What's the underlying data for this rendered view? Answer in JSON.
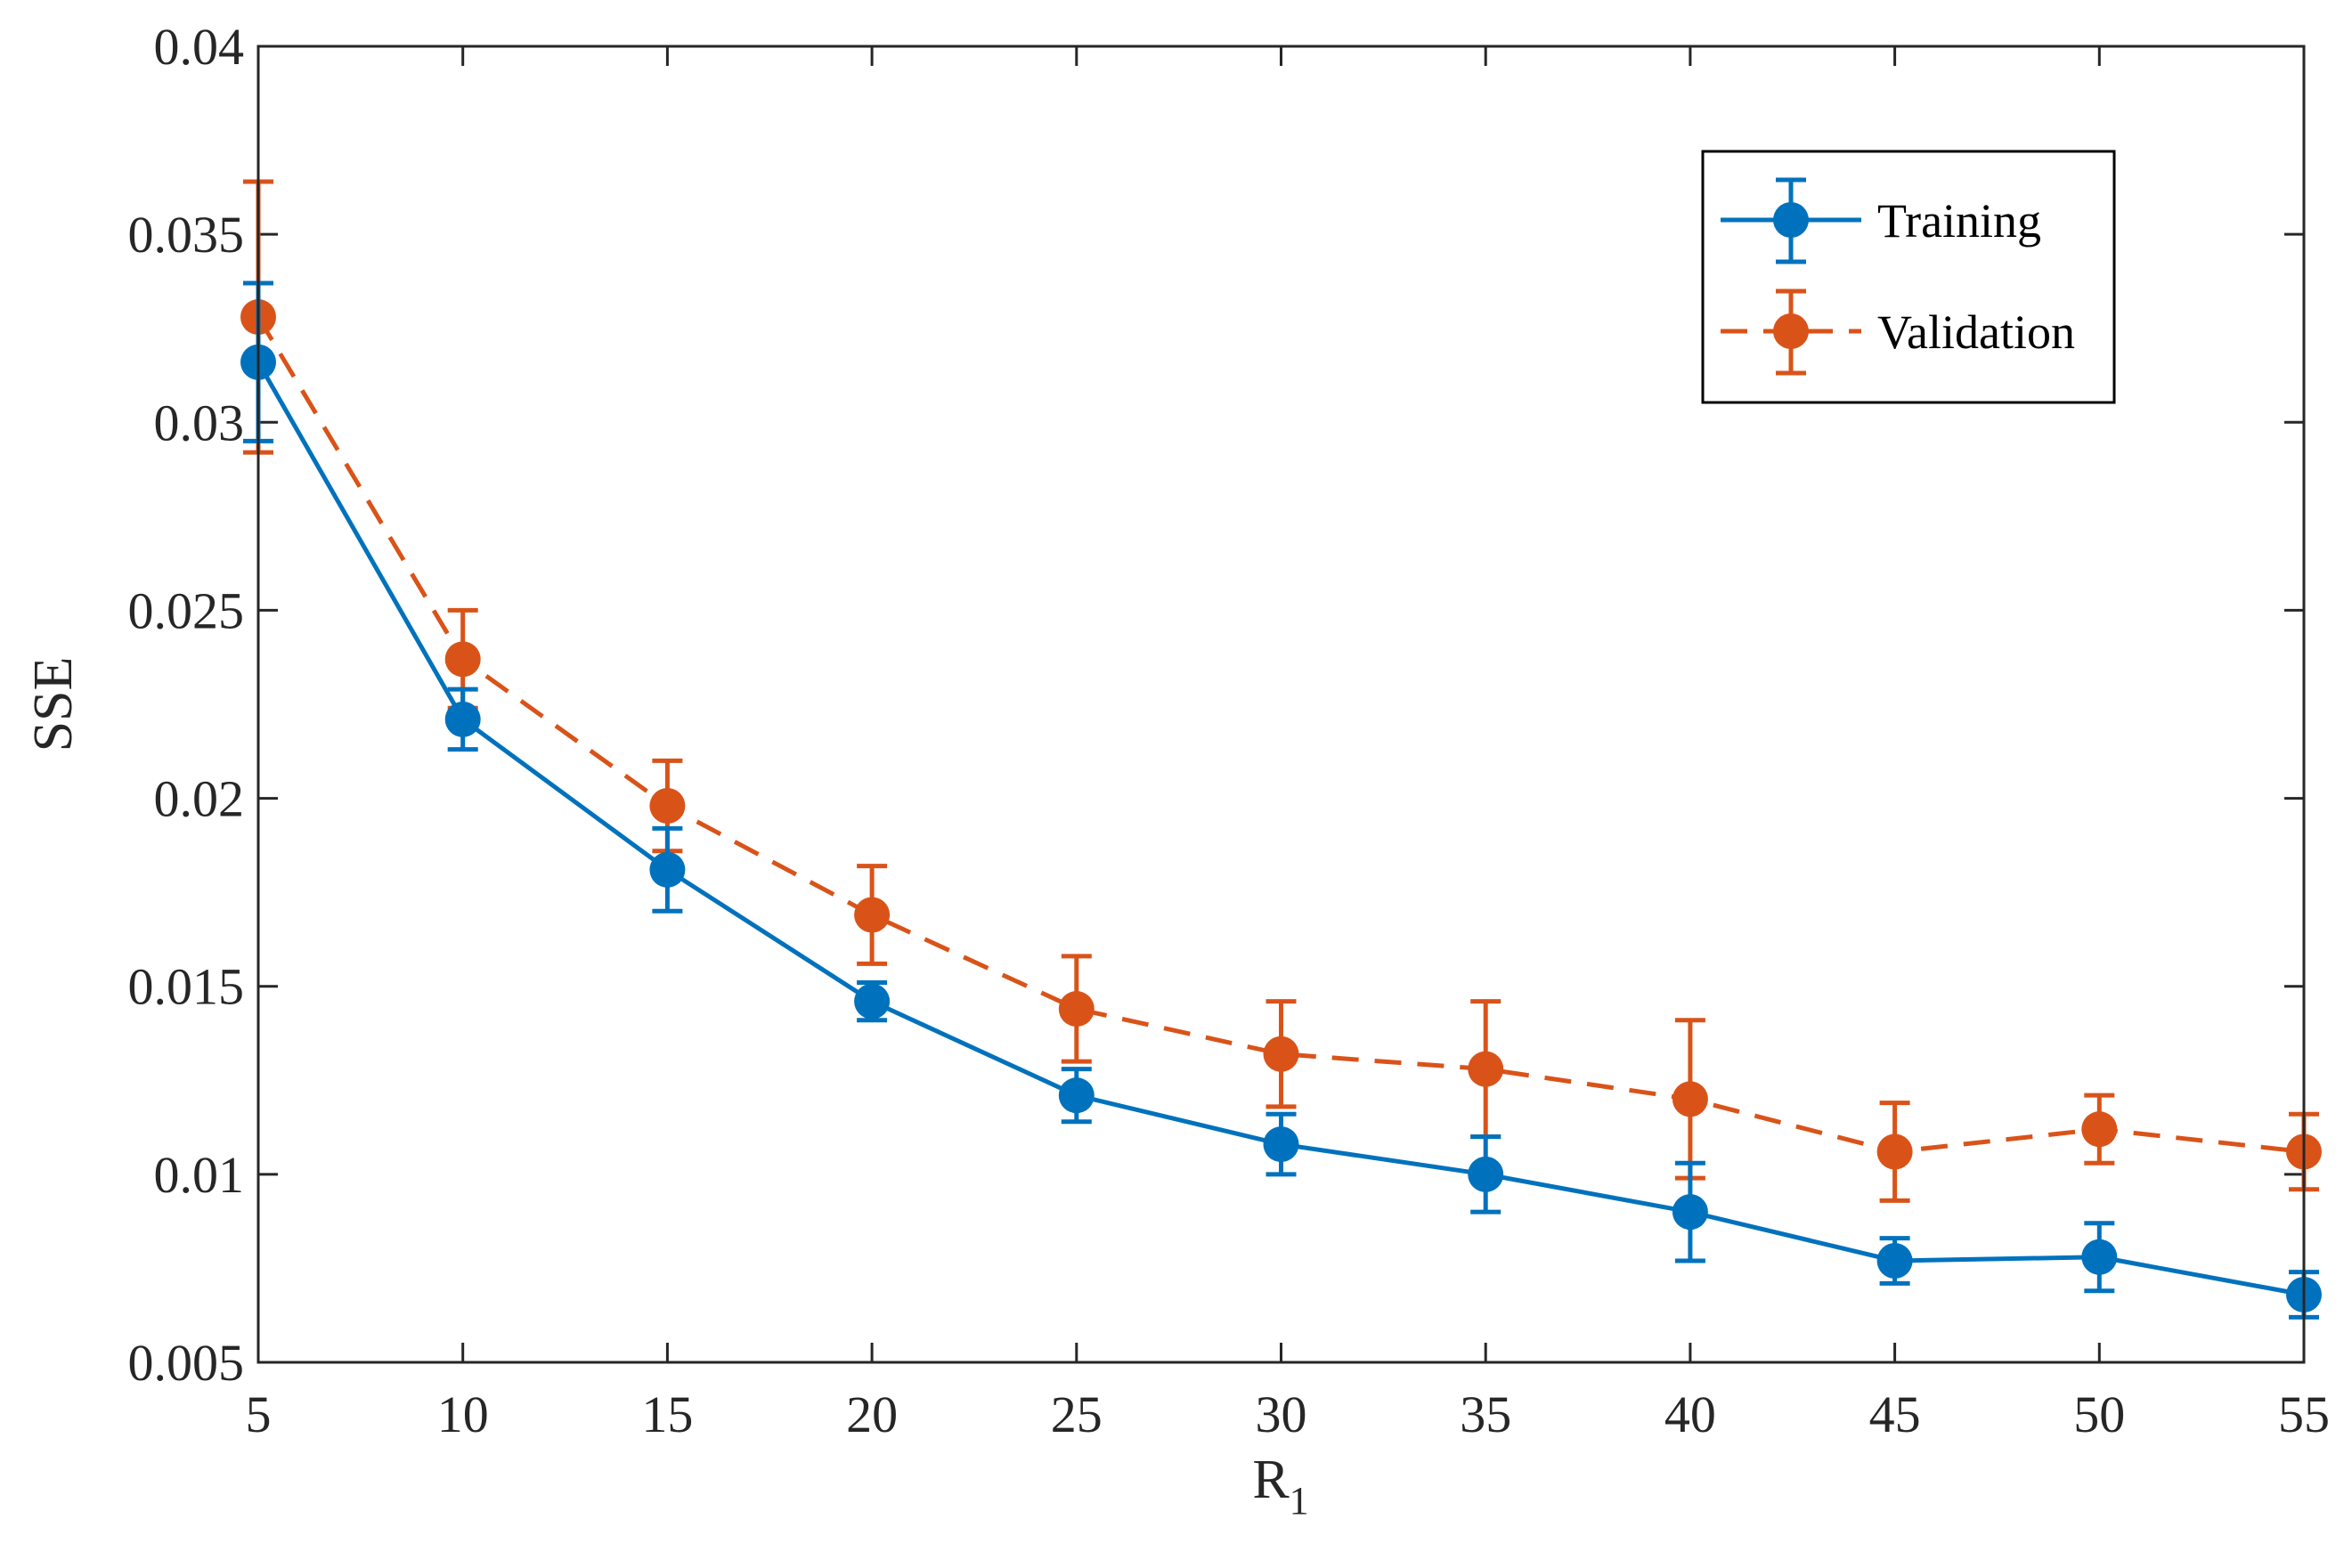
{
  "chart_data": {
    "type": "line",
    "title": "",
    "xlabel": "R",
    "xlabel_subscript": "1",
    "ylabel": "SSE",
    "x": [
      5,
      10,
      15,
      20,
      25,
      30,
      35,
      40,
      45,
      50,
      55
    ],
    "xlim": [
      5,
      55
    ],
    "ylim": [
      0.005,
      0.04
    ],
    "xticks": [
      5,
      10,
      15,
      20,
      25,
      30,
      35,
      40,
      45,
      50,
      55
    ],
    "xtick_labels": [
      "5",
      "10",
      "15",
      "20",
      "25",
      "30",
      "35",
      "40",
      "45",
      "50",
      "55"
    ],
    "yticks": [
      0.005,
      0.01,
      0.015,
      0.02,
      0.025,
      0.03,
      0.035,
      0.04
    ],
    "ytick_labels": [
      "0.005",
      "0.01",
      "0.015",
      "0.02",
      "0.025",
      "0.03",
      "0.035",
      "0.04"
    ],
    "grid": false,
    "legend_position": "top-right",
    "series": [
      {
        "name": "Training",
        "color": "#0072BD",
        "line_style": "solid",
        "values": [
          0.0316,
          0.0221,
          0.0181,
          0.0146,
          0.0121,
          0.0108,
          0.01,
          0.009,
          0.0077,
          0.0078,
          0.0068
        ],
        "errors": [
          0.0021,
          0.0008,
          0.0011,
          0.0005,
          0.0007,
          0.0008,
          0.001,
          0.0013,
          0.0006,
          0.0009,
          0.0006
        ]
      },
      {
        "name": "Validation",
        "color": "#D95319",
        "line_style": "dashed",
        "values": [
          0.0328,
          0.0237,
          0.0198,
          0.0169,
          0.0144,
          0.0132,
          0.0128,
          0.012,
          0.0106,
          0.0112,
          0.0106
        ],
        "errors": [
          0.0036,
          0.0013,
          0.0012,
          0.0013,
          0.0014,
          0.0014,
          0.0018,
          0.0021,
          0.0013,
          0.0009,
          0.001
        ]
      }
    ]
  }
}
